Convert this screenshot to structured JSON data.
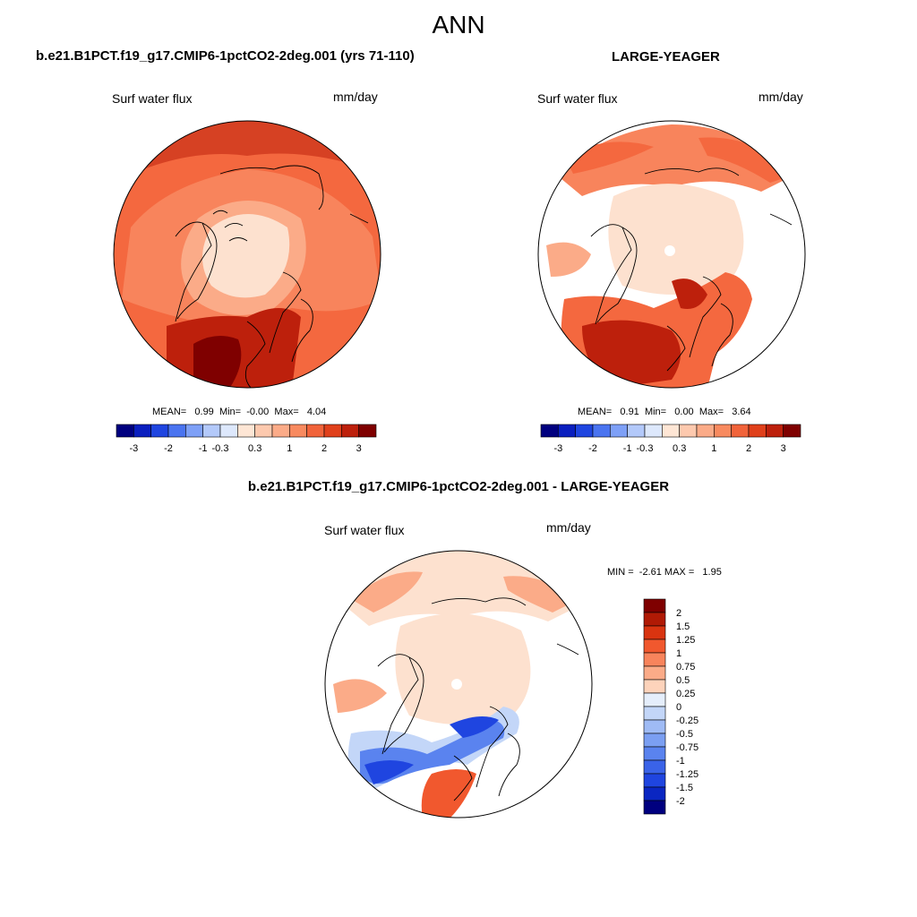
{
  "figure_title": "ANN",
  "panels": [
    {
      "case_title": "b.e21.B1PCT.f19_g17.CMIP6-1pctCO2-2deg.001 (yrs 71-110)",
      "variable": "Surf water flux",
      "units": "mm/day",
      "stats": {
        "mean_label": "MEAN=",
        "mean": "0.99",
        "min_label": "Min=",
        "min": "-0.00",
        "max_label": "Max=",
        "max": "4.04"
      }
    },
    {
      "case_title": "LARGE-YEAGER",
      "variable": "Surf water flux",
      "units": "mm/day",
      "stats": {
        "mean_label": "MEAN=",
        "mean": "0.91",
        "min_label": "Min=",
        "min": "0.00",
        "max_label": "Max=",
        "max": "3.64"
      }
    },
    {
      "case_title": "b.e21.B1PCT.f19_g17.CMIP6-1pctCO2-2deg.001 - LARGE-YEAGER",
      "variable": "Surf water flux",
      "units": "mm/day",
      "stats": {
        "min_label": "MIN =",
        "min": "-2.61",
        "max_label": "MAX =",
        "max": "1.95"
      }
    }
  ],
  "colorbar_horizontal": {
    "colors": [
      "#00007f",
      "#0a1fbf",
      "#1f45e0",
      "#4a74f0",
      "#7ea0f7",
      "#b3c9fa",
      "#dde8fc",
      "#fee6d5",
      "#fdc9ae",
      "#fbab88",
      "#f88a5f",
      "#f1633a",
      "#e0401b",
      "#bd200c",
      "#7f0000"
    ],
    "labels": [
      "-3",
      "-2",
      "-1",
      "-0.3",
      "0.3",
      "1",
      "2",
      "3"
    ]
  },
  "colorbar_vertical": {
    "colors": [
      "#7f0000",
      "#b01a05",
      "#d93410",
      "#f1582e",
      "#f8845c",
      "#fbab88",
      "#fdd3bb",
      "#e5eefb",
      "#c3d6f8",
      "#9fbbf5",
      "#7b9ff2",
      "#5a83ef",
      "#3a63e8",
      "#1f45e0",
      "#0a26c2",
      "#00007f"
    ],
    "labels": [
      "2",
      "1.5",
      "1.25",
      "1",
      "0.75",
      "0.5",
      "0.25",
      "0",
      "-0.25",
      "-0.5",
      "-0.75",
      "-1",
      "-1.25",
      "-1.5",
      "-2"
    ]
  },
  "map_fill_colors": {
    "ocean_high": "#f4683f",
    "ocean_mid": "#f8845c",
    "ocean_low": "#fbab88",
    "ice_low": "#fde1cf",
    "very_high": "#bd200c",
    "extreme": "#7f0000",
    "neg_light": "#c3d6f8",
    "neg_mid": "#5a83ef",
    "neg_strong": "#1f45e0",
    "pos_light": "#fbab88",
    "pos_mid": "#f1582e"
  }
}
